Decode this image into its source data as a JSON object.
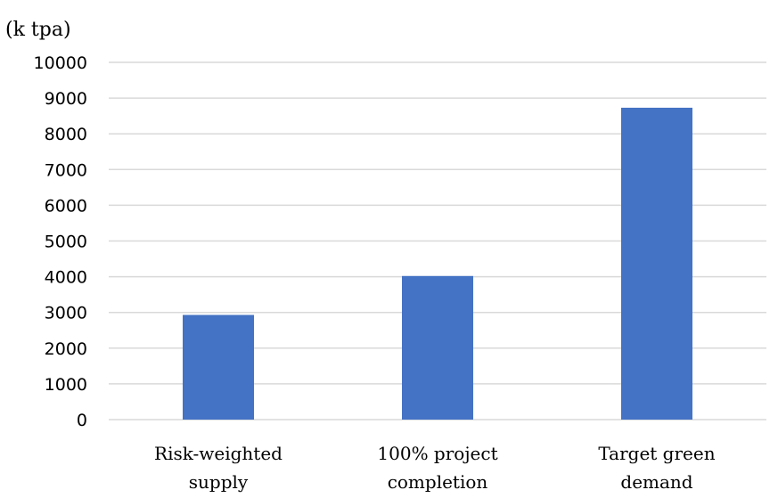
{
  "chart_data": {
    "type": "bar",
    "y_unit_label": "(k tpa)",
    "categories": [
      [
        "Risk-weighted",
        "supply"
      ],
      [
        "100% project",
        "completion"
      ],
      [
        "Target green",
        "demand"
      ]
    ],
    "values": [
      2930,
      4020,
      8730
    ],
    "ylim": [
      0,
      10000
    ],
    "y_ticks": [
      "0",
      "1000",
      "2000",
      "3000",
      "4000",
      "5000",
      "6000",
      "7000",
      "8000",
      "9000",
      "10000"
    ],
    "grid": true,
    "bar_color": "#4472c4",
    "gridline_color": "#d9d9d9"
  }
}
